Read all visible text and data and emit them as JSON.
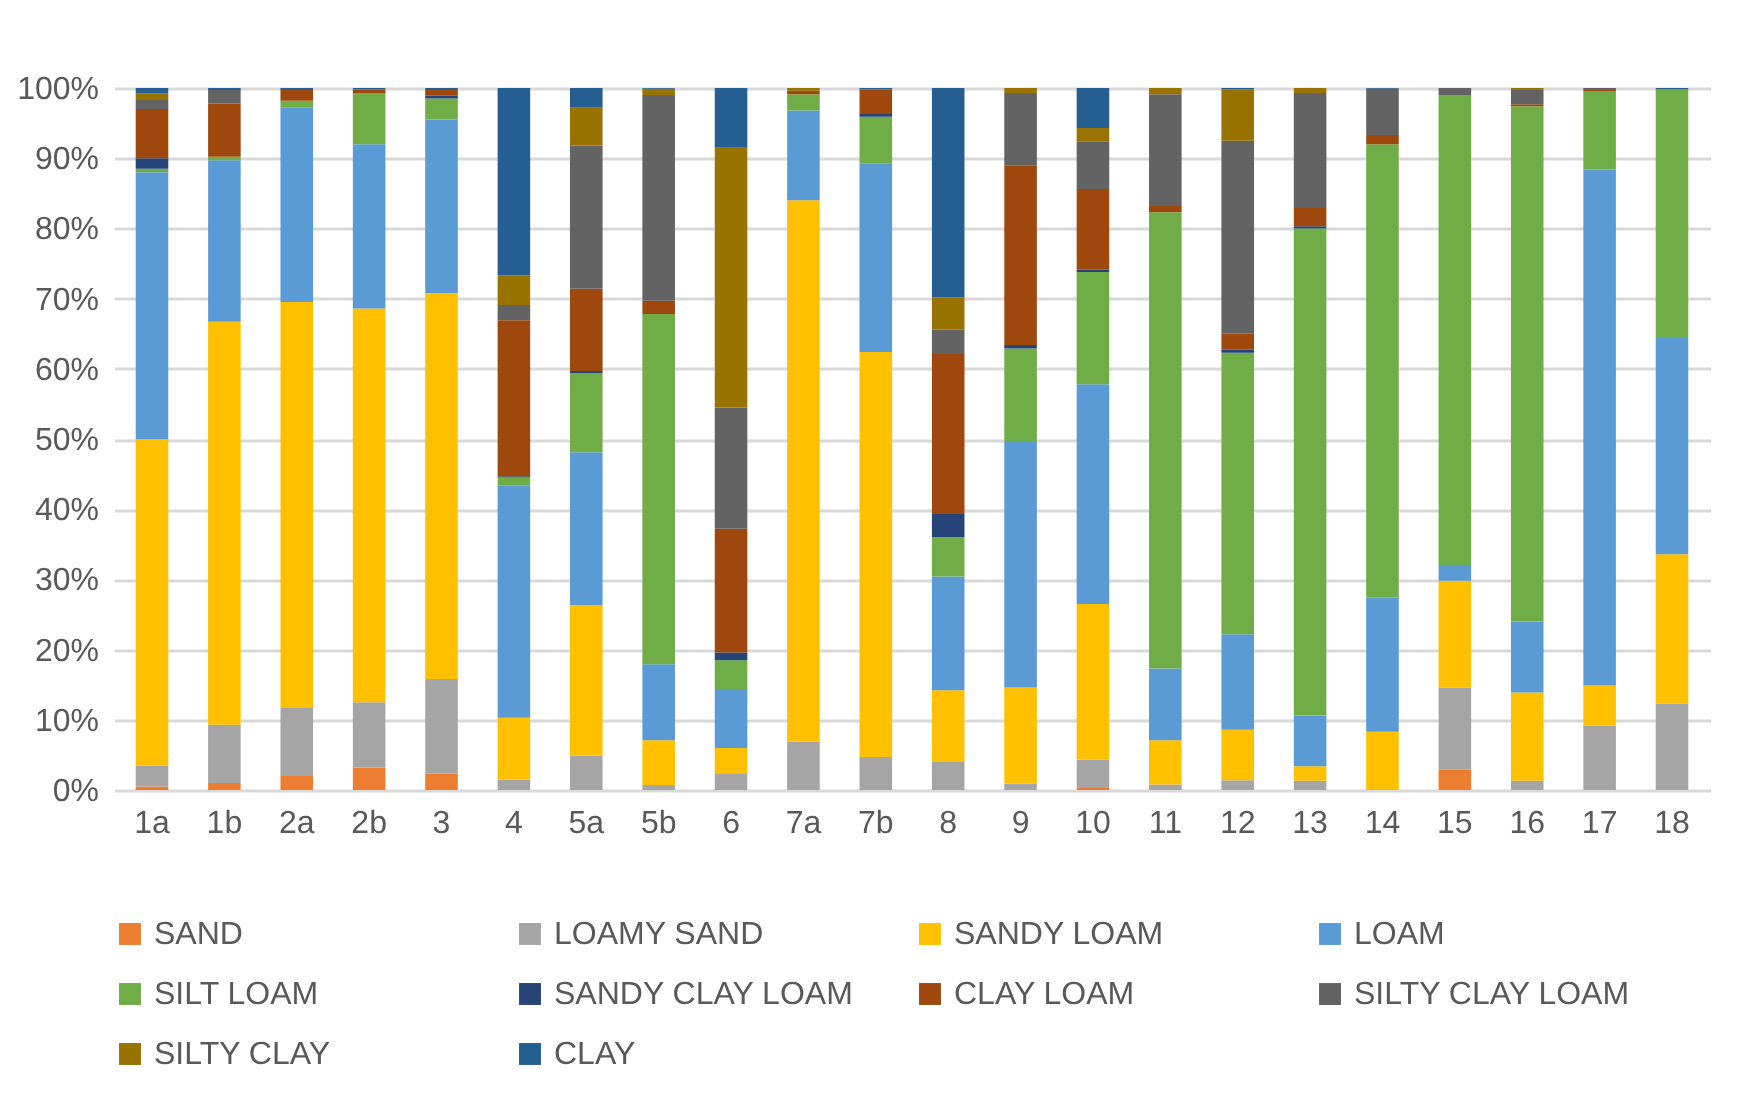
{
  "chart_data": {
    "type": "bar",
    "stacked": true,
    "categories": [
      "1a",
      "1b",
      "2a",
      "2b",
      "3",
      "4",
      "5a",
      "5b",
      "6",
      "7a",
      "7b",
      "8",
      "9",
      "10",
      "11",
      "12",
      "13",
      "14",
      "15",
      "16",
      "17",
      "18"
    ],
    "ylim": [
      0,
      100
    ],
    "yticks": [
      {
        "value": 0,
        "label": "0%"
      },
      {
        "value": 10,
        "label": "10%"
      },
      {
        "value": 20,
        "label": "20%"
      },
      {
        "value": 30,
        "label": "30%"
      },
      {
        "value": 40,
        "label": "40%"
      },
      {
        "value": 50,
        "label": "50%"
      },
      {
        "value": 60,
        "label": "60%"
      },
      {
        "value": 70,
        "label": "70%"
      },
      {
        "value": 80,
        "label": "80%"
      },
      {
        "value": 90,
        "label": "90%"
      },
      {
        "value": 100,
        "label": "100%"
      }
    ],
    "grid": "y",
    "legend": "bottom",
    "series": [
      {
        "name": "SAND",
        "color": "#ed7d31",
        "values": [
          0.5,
          1,
          2,
          3.2,
          2.3,
          0,
          0,
          0,
          0,
          0,
          0,
          0,
          0,
          0.3,
          0,
          0,
          0,
          0,
          2.9,
          0,
          0,
          0
        ]
      },
      {
        "name": "LOAMY SAND",
        "color": "#a5a5a5",
        "values": [
          3,
          8.3,
          9.8,
          9.3,
          13.5,
          1.5,
          4.9,
          0.7,
          2.4,
          6.9,
          4.7,
          4.1,
          0.9,
          4,
          0.8,
          1.4,
          1.3,
          0,
          11.7,
          1.3,
          9.2,
          12.3
        ]
      },
      {
        "name": "SANDY LOAM",
        "color": "#ffc000",
        "values": [
          46.5,
          57.4,
          57.7,
          56.1,
          55,
          8.8,
          21.4,
          6.4,
          3.6,
          77.1,
          57.7,
          10.1,
          13.7,
          22.2,
          6.3,
          7.2,
          2.1,
          8.3,
          15.2,
          12.6,
          5.7,
          21.3
        ]
      },
      {
        "name": "LOAM",
        "color": "#5b9bd5",
        "values": [
          38,
          23,
          27.7,
          23.4,
          24.7,
          33.1,
          21.8,
          10.8,
          8.4,
          12.8,
          26.8,
          16.2,
          35.1,
          31.3,
          10.2,
          13.6,
          7.2,
          19.1,
          2.1,
          10.1,
          73.5,
          30.8
        ]
      },
      {
        "name": "SILT LOAM",
        "color": "#70ad47",
        "values": [
          0.5,
          0.5,
          1,
          7.3,
          3,
          1.1,
          11.3,
          49.9,
          4.1,
          2.3,
          6.7,
          5.6,
          13.2,
          16,
          65,
          40.1,
          69.4,
          64.6,
          67.1,
          73.4,
          11.1,
          35.4
        ]
      },
      {
        "name": "SANDY CLAY LOAM",
        "color": "#264478",
        "values": [
          1.5,
          0,
          0,
          0,
          0.4,
          0.2,
          0.3,
          0,
          1.1,
          0,
          0.4,
          3.3,
          0.5,
          0.3,
          0,
          0.4,
          0.3,
          0,
          0,
          0,
          0,
          0
        ]
      },
      {
        "name": "CLAY LOAM",
        "color": "#9e480e",
        "values": [
          7,
          7.6,
          1.5,
          0.5,
          0.8,
          22.2,
          11.7,
          1.9,
          17.6,
          0.5,
          3.5,
          22.8,
          25.6,
          11.5,
          0.9,
          2.3,
          2.6,
          1.3,
          0,
          0.3,
          0.2,
          0
        ]
      },
      {
        "name": "SILTY CLAY LOAM",
        "color": "#636363",
        "values": [
          1.3,
          1.9,
          0,
          0,
          0,
          2.2,
          20.4,
          29.3,
          17.3,
          0,
          0,
          3.5,
          10.3,
          6.8,
          15.9,
          27.5,
          16.4,
          6.6,
          1,
          2,
          0.3,
          0
        ]
      },
      {
        "name": "SILTY CLAY",
        "color": "#997300",
        "values": [
          0.9,
          0,
          0,
          0,
          0,
          4.2,
          5.4,
          0.9,
          37,
          0.4,
          0,
          4.6,
          0.7,
          1.9,
          0.9,
          7.3,
          0.7,
          0,
          0,
          0.3,
          0,
          0
        ]
      },
      {
        "name": "CLAY",
        "color": "#255e91",
        "values": [
          0.8,
          0.3,
          0.3,
          0.2,
          0.3,
          26.7,
          2.8,
          0.1,
          8.5,
          0,
          0.2,
          29.8,
          0,
          5.7,
          0,
          0.2,
          0,
          0.1,
          0,
          0,
          0,
          0.2
        ]
      }
    ]
  }
}
